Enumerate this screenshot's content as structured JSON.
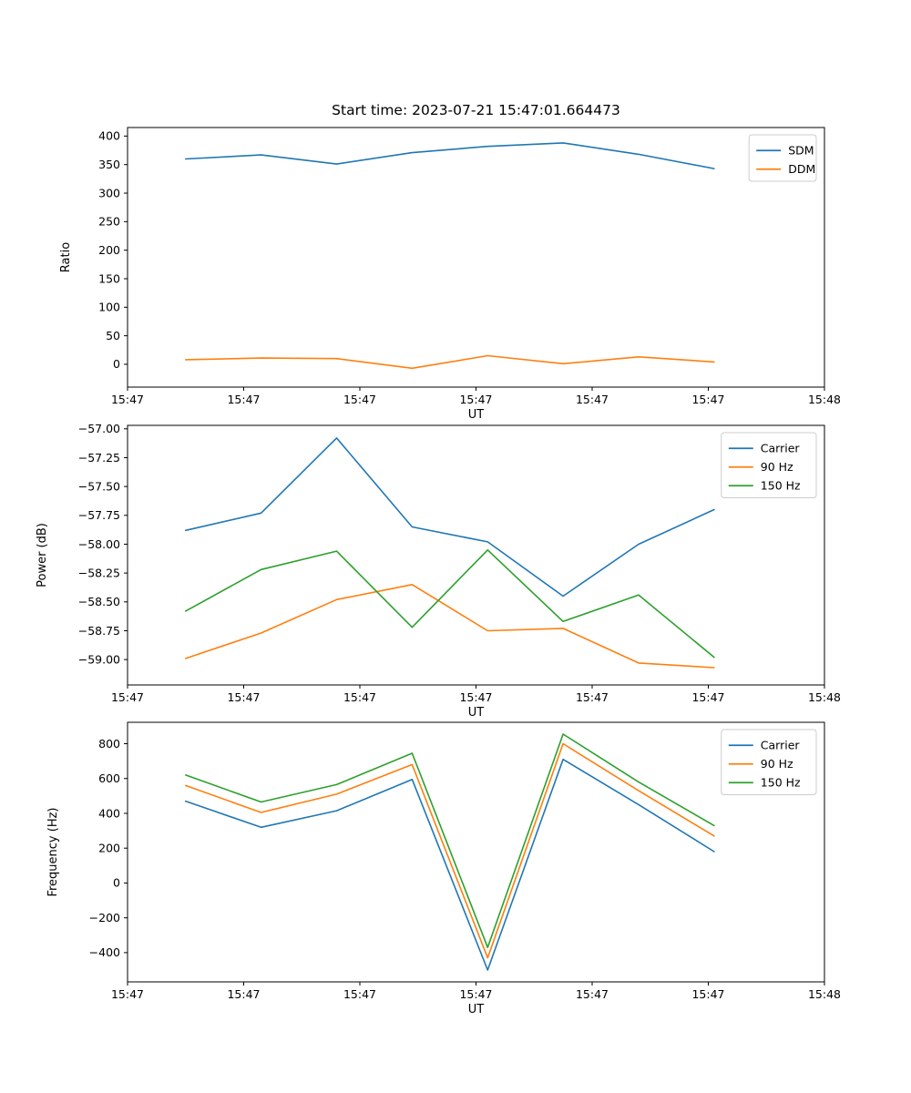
{
  "title": "Start time: 2023-07-21 15:47:01.664473",
  "colors": {
    "blue": "#1f77b4",
    "orange": "#ff7f0e",
    "green": "#2ca02c"
  },
  "chart_data": [
    {
      "type": "line",
      "xlabel": "UT",
      "ylabel": "Ratio",
      "xlim": [
        0,
        6
      ],
      "xticks": [
        0,
        1,
        2,
        3,
        4,
        5,
        6
      ],
      "xtick_labels": [
        "15:47",
        "15:47",
        "15:47",
        "15:47",
        "15:47",
        "15:47",
        "15:48"
      ],
      "ylim": [
        -40,
        415
      ],
      "yticks": [
        0,
        50,
        100,
        150,
        200,
        250,
        300,
        350,
        400
      ],
      "ytick_labels": [
        "0",
        "50",
        "100",
        "150",
        "200",
        "250",
        "300",
        "350",
        "400"
      ],
      "x": [
        0.5,
        1.15,
        1.8,
        2.45,
        3.1,
        3.75,
        4.4,
        5.05
      ],
      "series": [
        {
          "name": "SDM",
          "color": "#1f77b4",
          "values": [
            360,
            367,
            351,
            371,
            382,
            388,
            368,
            343
          ]
        },
        {
          "name": "DDM",
          "color": "#ff7f0e",
          "values": [
            8,
            11,
            10,
            -7,
            15,
            1,
            13,
            4
          ]
        }
      ],
      "legend_position": "upper right",
      "grid": false
    },
    {
      "type": "line",
      "xlabel": "UT",
      "ylabel": "Power (dB)",
      "xlim": [
        0,
        6
      ],
      "xticks": [
        0,
        1,
        2,
        3,
        4,
        5,
        6
      ],
      "xtick_labels": [
        "15:47",
        "15:47",
        "15:47",
        "15:47",
        "15:47",
        "15:47",
        "15:48"
      ],
      "ylim": [
        -59.22,
        -56.97
      ],
      "yticks": [
        -59.0,
        -58.75,
        -58.5,
        -58.25,
        -58.0,
        -57.75,
        -57.5,
        -57.25,
        -57.0
      ],
      "ytick_labels": [
        "−59.00",
        "−58.75",
        "−58.50",
        "−58.25",
        "−58.00",
        "−57.75",
        "−57.50",
        "−57.25",
        "−57.00"
      ],
      "x": [
        0.5,
        1.15,
        1.8,
        2.45,
        3.1,
        3.75,
        4.4,
        5.05
      ],
      "series": [
        {
          "name": "Carrier",
          "color": "#1f77b4",
          "values": [
            -57.88,
            -57.73,
            -57.08,
            -57.85,
            -57.98,
            -58.45,
            -58.0,
            -57.7
          ]
        },
        {
          "name": "90 Hz",
          "color": "#ff7f0e",
          "values": [
            -58.99,
            -58.77,
            -58.48,
            -58.35,
            -58.75,
            -58.73,
            -59.03,
            -59.07
          ]
        },
        {
          "name": "150 Hz",
          "color": "#2ca02c",
          "values": [
            -58.58,
            -58.22,
            -58.06,
            -58.72,
            -58.05,
            -58.67,
            -58.44,
            -58.98
          ]
        }
      ],
      "legend_position": "upper right",
      "grid": false
    },
    {
      "type": "line",
      "xlabel": "UT",
      "ylabel": "Frequency (Hz)",
      "xlim": [
        0,
        6
      ],
      "xticks": [
        0,
        1,
        2,
        3,
        4,
        5,
        6
      ],
      "xtick_labels": [
        "15:47",
        "15:47",
        "15:47",
        "15:47",
        "15:47",
        "15:47",
        "15:48"
      ],
      "ylim": [
        -568,
        923
      ],
      "yticks": [
        -400,
        -200,
        0,
        200,
        400,
        600,
        800
      ],
      "ytick_labels": [
        "−400",
        "−200",
        "0",
        "200",
        "400",
        "600",
        "800"
      ],
      "x": [
        0.5,
        1.15,
        1.8,
        2.45,
        3.1,
        3.75,
        4.4,
        5.05
      ],
      "series": [
        {
          "name": "Carrier",
          "color": "#1f77b4",
          "values": [
            470,
            320,
            415,
            595,
            -500,
            710,
            450,
            180
          ]
        },
        {
          "name": "90 Hz",
          "color": "#ff7f0e",
          "values": [
            560,
            405,
            510,
            680,
            -430,
            800,
            530,
            270
          ]
        },
        {
          "name": "150 Hz",
          "color": "#2ca02c",
          "values": [
            620,
            465,
            565,
            745,
            -370,
            855,
            580,
            330
          ]
        }
      ],
      "legend_position": "upper right",
      "grid": false
    }
  ]
}
